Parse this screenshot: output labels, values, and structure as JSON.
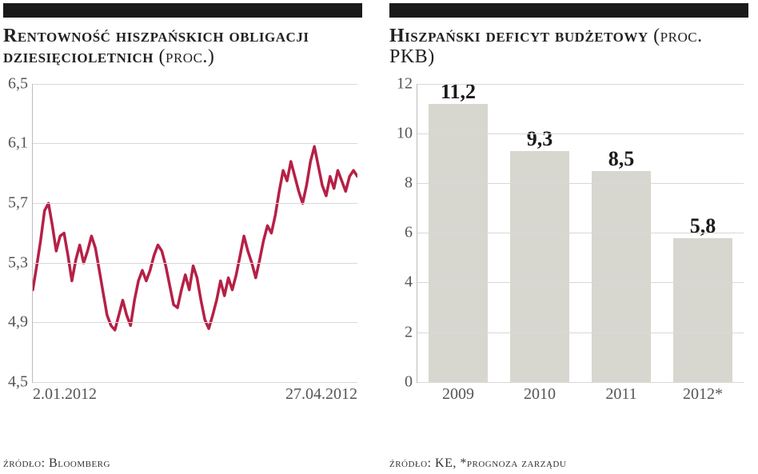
{
  "left": {
    "title_upper": "Rentowność hiszpańskich obligacji dziesięcioletnich",
    "title_paren": "(proc.)",
    "source": "źródło: Bloomberg",
    "chart": {
      "type": "line",
      "ylim": [
        4.5,
        6.5
      ],
      "yticks": [
        4.5,
        4.9,
        5.3,
        5.7,
        6.1,
        6.5
      ],
      "ytick_labels": [
        "4,5",
        "4,9",
        "5,3",
        "5,7",
        "6,1",
        "6,5"
      ],
      "xlim": [
        0,
        83
      ],
      "xtick_positions": [
        0,
        83
      ],
      "xtick_labels": [
        "2.01.2012",
        "27.04.2012"
      ],
      "line_color": "#b62046",
      "line_width": 3.5,
      "grid_color": "#d8d8d8",
      "axis_color": "#bcbcbc",
      "background_color": "#ffffff",
      "axis_label_fontsize": 20,
      "series": [
        5.12,
        5.28,
        5.45,
        5.65,
        5.7,
        5.55,
        5.38,
        5.48,
        5.5,
        5.35,
        5.18,
        5.32,
        5.42,
        5.3,
        5.38,
        5.48,
        5.4,
        5.25,
        5.1,
        4.95,
        4.88,
        4.85,
        4.95,
        5.05,
        4.95,
        4.88,
        5.05,
        5.18,
        5.25,
        5.18,
        5.25,
        5.35,
        5.42,
        5.38,
        5.28,
        5.15,
        5.02,
        5.0,
        5.12,
        5.22,
        5.12,
        5.28,
        5.2,
        5.05,
        4.92,
        4.86,
        4.95,
        5.05,
        5.18,
        5.08,
        5.2,
        5.12,
        5.22,
        5.35,
        5.48,
        5.38,
        5.3,
        5.2,
        5.32,
        5.45,
        5.55,
        5.5,
        5.62,
        5.78,
        5.92,
        5.85,
        5.98,
        5.88,
        5.78,
        5.7,
        5.82,
        5.98,
        6.08,
        5.95,
        5.82,
        5.75,
        5.88,
        5.8,
        5.92,
        5.85,
        5.78,
        5.88,
        5.92,
        5.88
      ]
    }
  },
  "right": {
    "title_upper": "Hiszpański deficyt budżetowy",
    "title_paren": "(proc. PKB)",
    "source": "źródło: KE, *prognoza zarządu",
    "chart": {
      "type": "bar",
      "categories": [
        "2009",
        "2010",
        "2011",
        "2012*"
      ],
      "values": [
        11.2,
        9.3,
        8.5,
        5.8
      ],
      "value_labels": [
        "11,2",
        "9,3",
        "8,5",
        "5,8"
      ],
      "ylim": [
        0,
        12
      ],
      "ytick_step": 2,
      "yticks": [
        0,
        2,
        4,
        6,
        8,
        10,
        12
      ],
      "bar_color": "#d7d7cf",
      "grid_color": "#d8d8d8",
      "axis_color": "#bcbcbc",
      "background_color": "#ffffff",
      "value_fontsize": 26,
      "axis_label_fontsize": 20,
      "bar_width": 0.72
    }
  }
}
